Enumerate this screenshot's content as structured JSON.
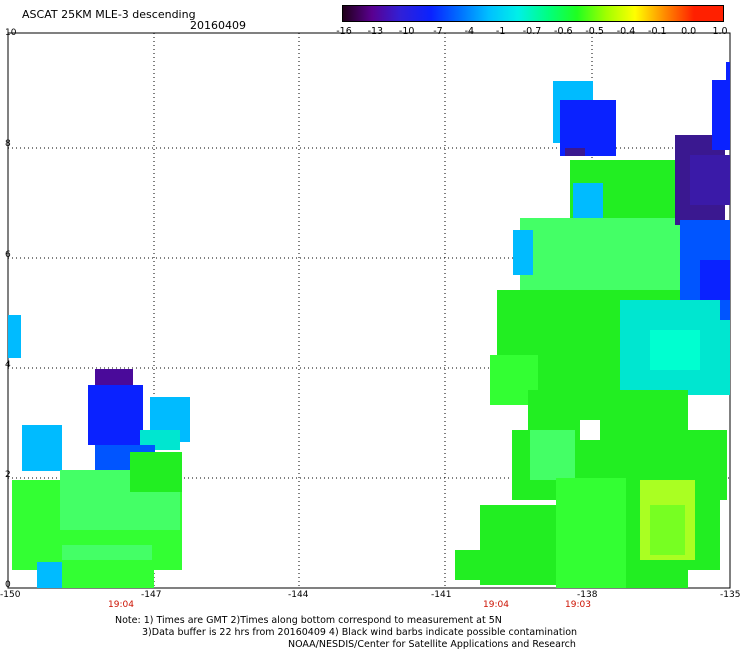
{
  "header": {
    "title": "ASCAT 25KM MLE-3 descending",
    "date": "20160409"
  },
  "colorbar": {
    "labels": [
      "-16",
      "-13",
      "-10",
      "-7",
      "-4",
      "-1",
      "-0.7",
      "-0.6",
      "-0.5",
      "-0.4",
      "-0.1",
      "0.0",
      "1.0"
    ],
    "colors": [
      "#20001a",
      "#5a0090",
      "#3020d8",
      "#0a22ff",
      "#0070ff",
      "#00c0ff",
      "#00f0e8",
      "#00ff80",
      "#20ff20",
      "#a0ff00",
      "#ffff00",
      "#ff8a00",
      "#ff2000"
    ]
  },
  "axes": {
    "x_ticks": [
      "-150",
      "-147",
      "-144",
      "-141",
      "-138",
      "-135"
    ],
    "y_ticks": [
      "0",
      "2",
      "4",
      "6",
      "8",
      "10"
    ],
    "xlim": [
      -150,
      -135
    ],
    "ylim": [
      0,
      10
    ]
  },
  "time_labels": [
    "19:04",
    "19:04",
    "19:03"
  ],
  "notes": {
    "line1": "Note: 1) Times are GMT 2)Times along bottom correspond to measurement at 5N",
    "line2": "3)Data buffer is 22 hrs from 20160409 4) Black wind barbs indicate possible contamination",
    "line3": "NOAA/NESDIS/Center for Satellite Applications and Research"
  }
}
